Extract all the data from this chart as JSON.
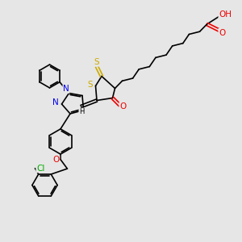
{
  "bg_color": "#e6e6e6",
  "bond_color": "#000000",
  "bond_width": 1.2,
  "atom_colors": {
    "N": "#0000ee",
    "O": "#ee0000",
    "S": "#ccaa00",
    "Cl": "#00aa00",
    "H": "#000000"
  },
  "font_size": 7.5,
  "fig_width": 3.0,
  "fig_height": 3.0
}
